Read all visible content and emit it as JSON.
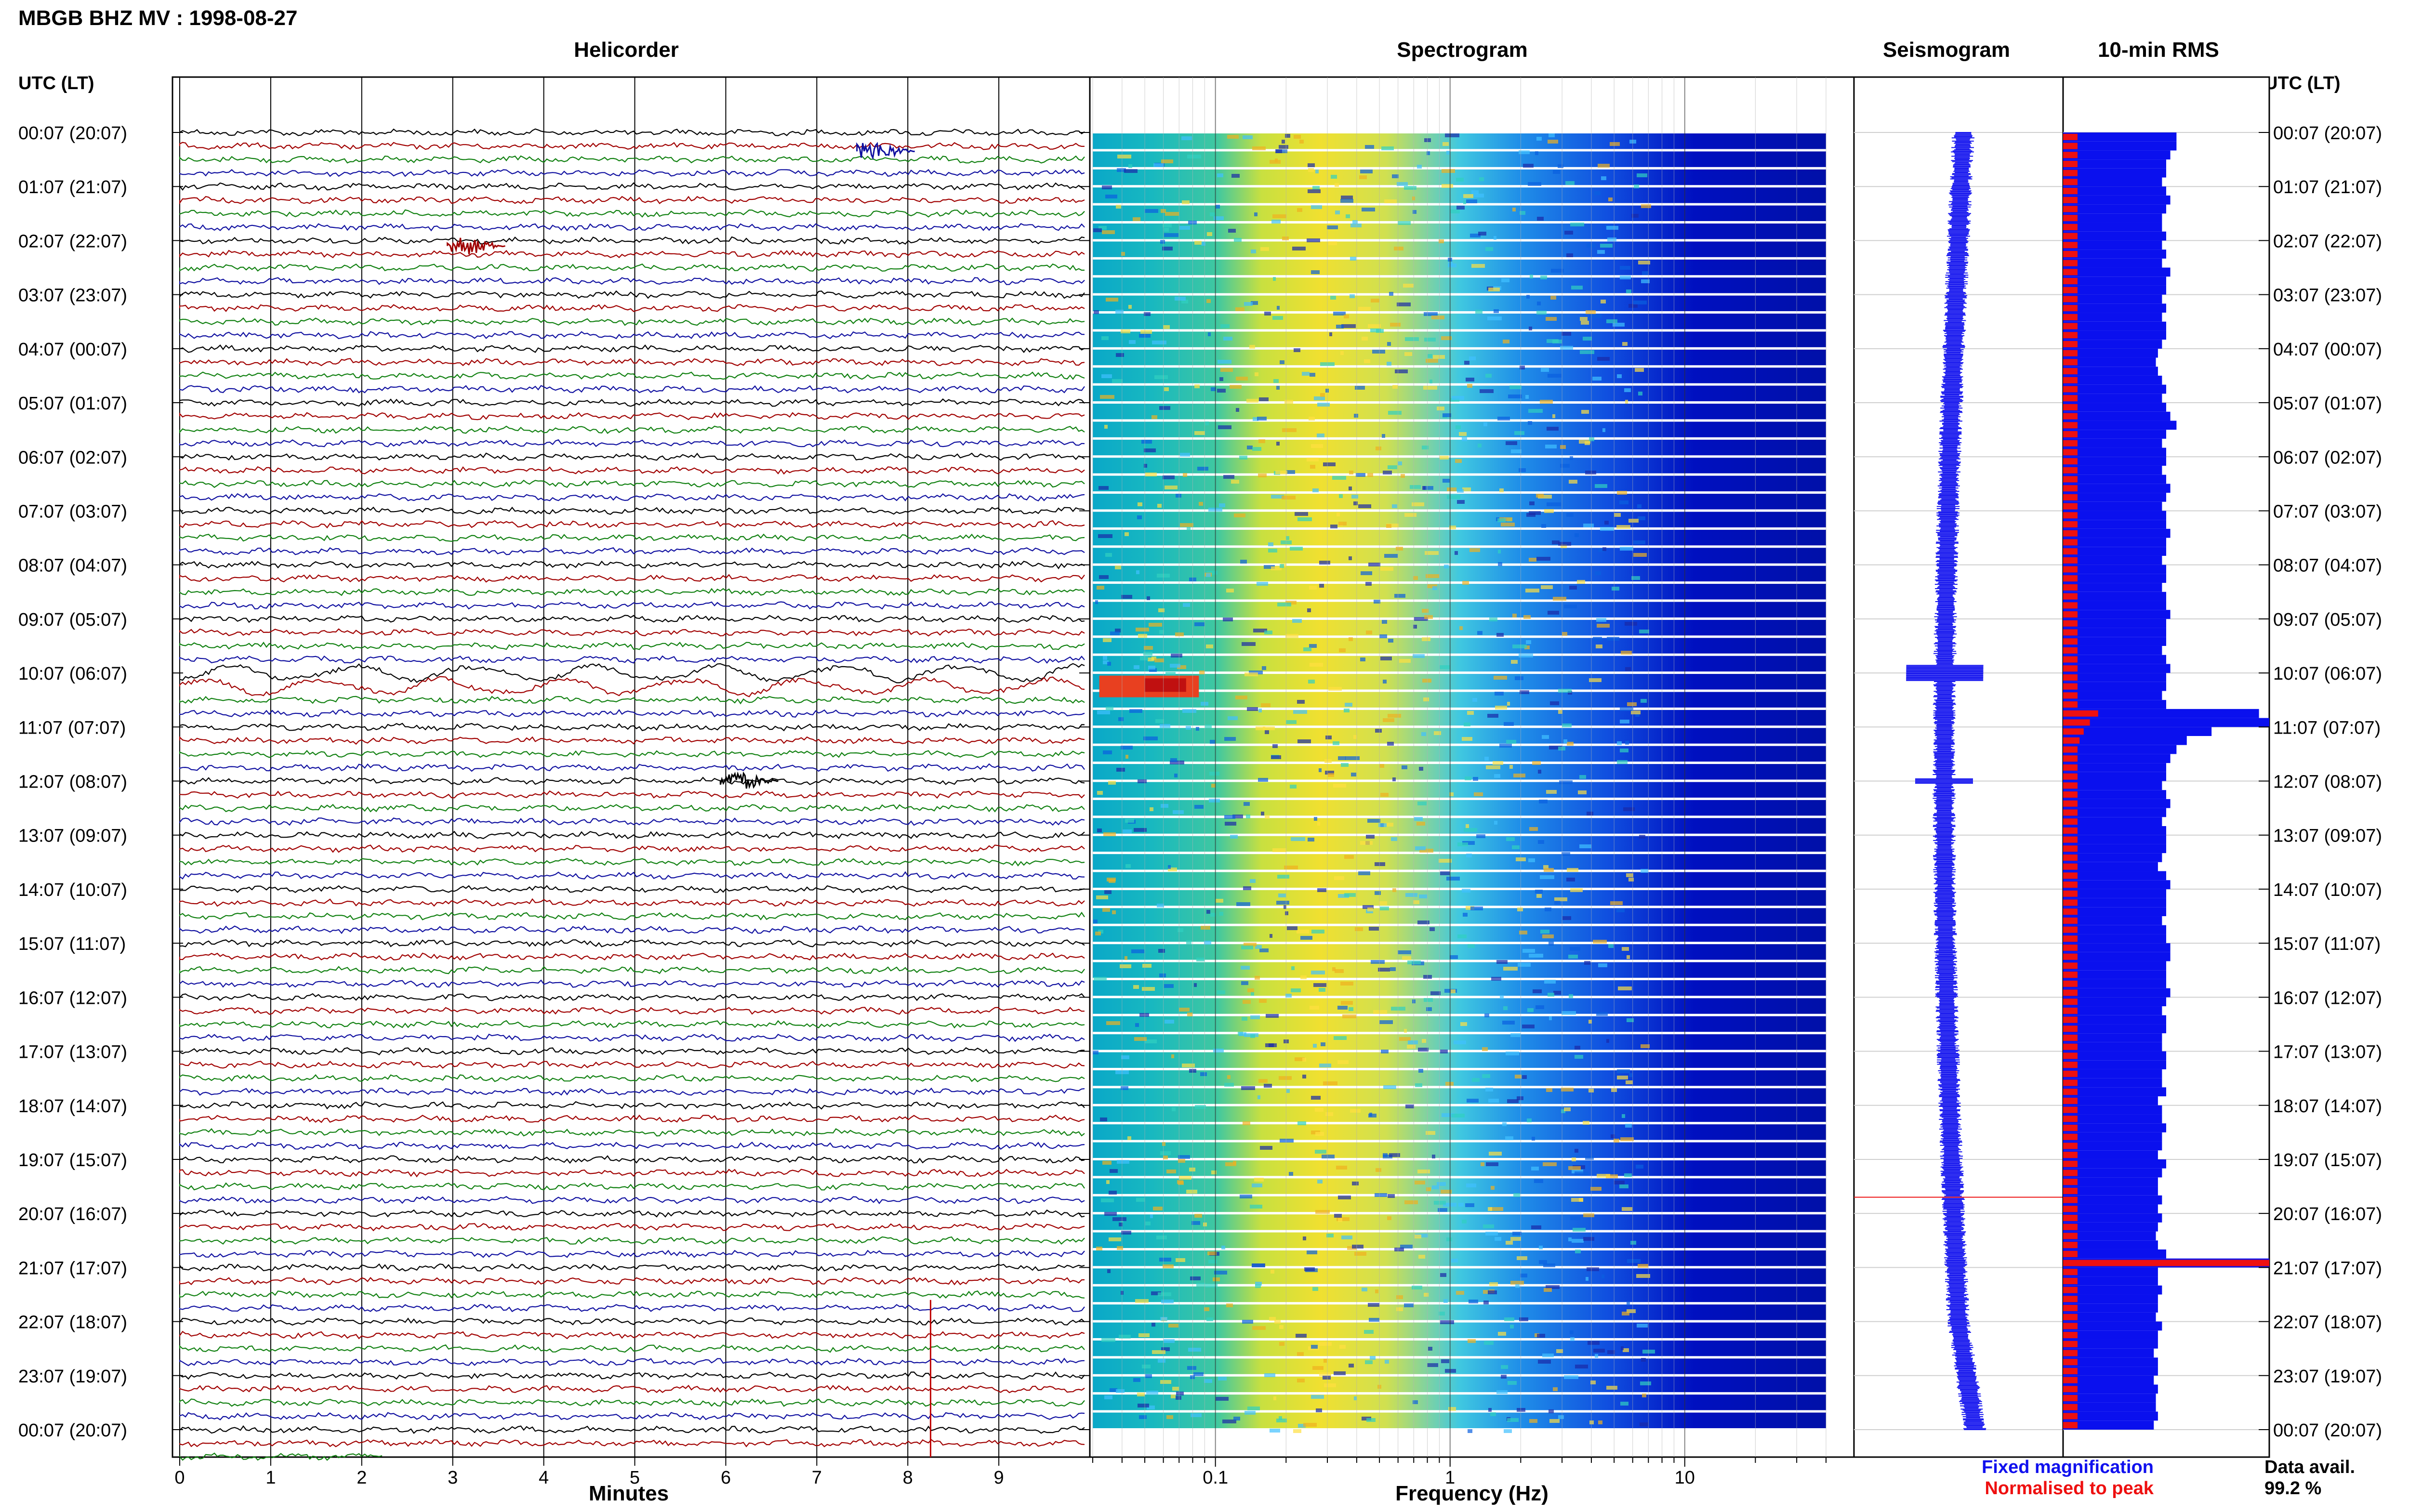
{
  "header": {
    "title": "MBGB BHZ MV : 1998-08-27"
  },
  "panels": {
    "helicorder": "Helicorder",
    "spectrogram": "Spectrogram",
    "seismogram": "Seismogram",
    "rms": "10-min RMS"
  },
  "axes": {
    "left_time_label": "UTC (LT)",
    "right_time_label": "UTC (LT)",
    "minutes_label": "Minutes",
    "frequency_label": "Frequency (Hz)"
  },
  "legend": {
    "fixed": "Fixed magnification",
    "normalised": "Normalised to peak",
    "fixed_color": "#1010ee",
    "normalised_color": "#ee1010",
    "data_avail_label": "Data avail.",
    "data_avail_value": "99.2 %"
  },
  "chart_data": {
    "type": "heatmap",
    "time_labels": [
      "00:07 (20:07)",
      "01:07 (21:07)",
      "02:07 (22:07)",
      "03:07 (23:07)",
      "04:07 (00:07)",
      "05:07 (01:07)",
      "06:07 (02:07)",
      "07:07 (03:07)",
      "08:07 (04:07)",
      "09:07 (05:07)",
      "10:07 (06:07)",
      "11:07 (07:07)",
      "12:07 (08:07)",
      "13:07 (09:07)",
      "14:07 (10:07)",
      "15:07 (11:07)",
      "16:07 (12:07)",
      "17:07 (13:07)",
      "18:07 (14:07)",
      "19:07 (15:07)",
      "20:07 (16:07)",
      "21:07 (17:07)",
      "22:07 (18:07)",
      "23:07 (19:07)",
      "00:07 (20:07)"
    ],
    "helicorder": {
      "x_ticks": [
        "0",
        "1",
        "2",
        "3",
        "4",
        "5",
        "6",
        "7",
        "8",
        "9"
      ],
      "xlim": [
        0,
        10
      ],
      "line_colors": [
        "#000000",
        "#a00000",
        "#108010",
        "#1010a0"
      ],
      "events": [
        {
          "hour": 2.1,
          "minute": 3.1,
          "color": "#a00000"
        },
        {
          "hour": 12.0,
          "minute": 6.1,
          "color": "#000000"
        },
        {
          "hour": 0.35,
          "minute": 7.6,
          "color": "#1010a0"
        }
      ]
    },
    "spectrogram": {
      "x_ticks": [
        "0.1",
        "1",
        "10"
      ],
      "xlim": [
        0.03,
        40
      ],
      "log_scale": true
    },
    "rms": {
      "fixed": [
        0.55,
        0.55,
        0.52,
        0.5,
        0.5,
        0.48,
        0.5,
        0.52,
        0.5,
        0.48,
        0.48,
        0.5,
        0.48,
        0.5,
        0.48,
        0.52,
        0.5,
        0.5,
        0.48,
        0.5,
        0.48,
        0.5,
        0.5,
        0.48,
        0.46,
        0.45,
        0.46,
        0.48,
        0.5,
        0.48,
        0.5,
        0.52,
        0.55,
        0.5,
        0.48,
        0.5,
        0.5,
        0.48,
        0.5,
        0.52,
        0.5,
        0.48,
        0.5,
        0.5,
        0.52,
        0.5,
        0.5,
        0.48,
        0.5,
        0.5,
        0.48,
        0.5,
        0.5,
        0.52,
        0.5,
        0.5,
        0.5,
        0.48,
        0.5,
        0.52,
        0.5,
        0.5,
        0.48,
        0.5,
        0.95,
        1.0,
        0.72,
        0.6,
        0.55,
        0.52,
        0.5,
        0.5,
        0.48,
        0.5,
        0.52,
        0.5,
        0.48,
        0.5,
        0.5,
        0.5,
        0.48,
        0.46,
        0.5,
        0.52,
        0.5,
        0.5,
        0.5,
        0.48,
        0.5,
        0.5,
        0.52,
        0.52,
        0.5,
        0.5,
        0.5,
        0.52,
        0.5,
        0.48,
        0.5,
        0.5,
        0.48,
        0.48,
        0.5,
        0.5,
        0.48,
        0.48,
        0.5,
        0.46,
        0.48,
        0.48,
        0.5,
        0.48,
        0.48,
        0.46,
        0.5,
        0.48,
        0.46,
        0.46,
        0.48,
        0.46,
        0.48,
        0.46,
        0.45,
        0.46,
        0.5,
        1.0,
        0.46,
        0.46,
        0.48,
        0.46,
        0.46,
        0.45,
        0.48,
        0.46,
        0.46,
        0.44,
        0.46,
        0.46,
        0.44,
        0.46,
        0.45,
        0.45,
        0.46,
        0.44
      ],
      "normalised": [
        0.07,
        0.07,
        0.07,
        0.07,
        0.07,
        0.07,
        0.07,
        0.07,
        0.07,
        0.07,
        0.07,
        0.07,
        0.07,
        0.07,
        0.07,
        0.07,
        0.07,
        0.07,
        0.07,
        0.07,
        0.07,
        0.07,
        0.07,
        0.07,
        0.07,
        0.07,
        0.07,
        0.07,
        0.07,
        0.07,
        0.07,
        0.07,
        0.07,
        0.07,
        0.07,
        0.07,
        0.07,
        0.07,
        0.07,
        0.07,
        0.07,
        0.07,
        0.07,
        0.07,
        0.07,
        0.07,
        0.07,
        0.07,
        0.07,
        0.07,
        0.07,
        0.07,
        0.07,
        0.07,
        0.07,
        0.07,
        0.07,
        0.07,
        0.07,
        0.07,
        0.07,
        0.07,
        0.07,
        0.07,
        0.17,
        0.13,
        0.1,
        0.08,
        0.07,
        0.07,
        0.07,
        0.07,
        0.07,
        0.07,
        0.07,
        0.07,
        0.07,
        0.07,
        0.07,
        0.07,
        0.07,
        0.07,
        0.07,
        0.07,
        0.07,
        0.07,
        0.07,
        0.07,
        0.07,
        0.07,
        0.07,
        0.07,
        0.07,
        0.07,
        0.07,
        0.07,
        0.07,
        0.07,
        0.07,
        0.07,
        0.07,
        0.07,
        0.07,
        0.07,
        0.07,
        0.07,
        0.07,
        0.07,
        0.07,
        0.07,
        0.07,
        0.07,
        0.07,
        0.07,
        0.07,
        0.07,
        0.07,
        0.07,
        0.07,
        0.07,
        0.07,
        0.07,
        0.07,
        0.07,
        0.07,
        1.0,
        0.07,
        0.07,
        0.07,
        0.07,
        0.07,
        0.07,
        0.07,
        0.07,
        0.07,
        0.07,
        0.07,
        0.07,
        0.07,
        0.07,
        0.07,
        0.07,
        0.07,
        0.07
      ]
    }
  }
}
